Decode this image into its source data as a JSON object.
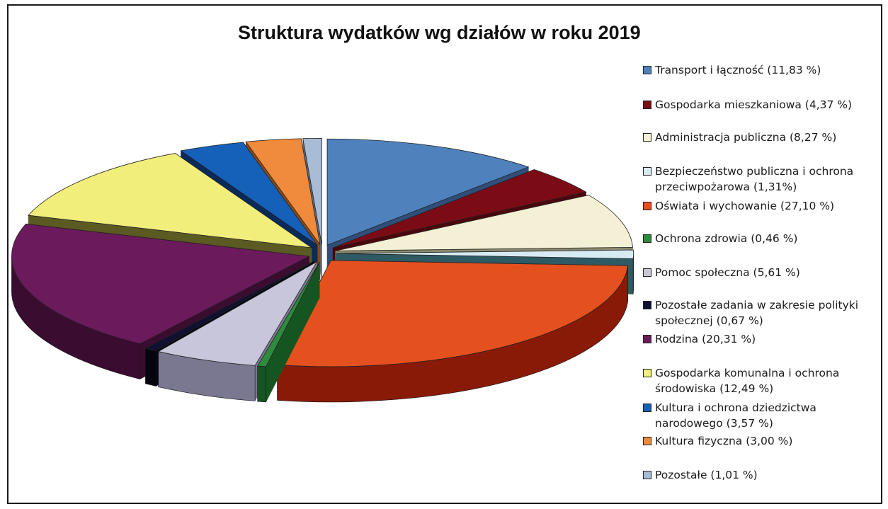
{
  "chart_data": {
    "type": "pie",
    "title": "Struktura wydatków wg działów w roku 2019",
    "legend_position": "right",
    "slices": [
      {
        "label": "Transport i łączność (11,83 %)",
        "value": 11.83,
        "color": "#4f81bd",
        "dark": "#2f4f7a",
        "lines": [
          "Transport i łączność (11,83 %)"
        ]
      },
      {
        "label": "Gospodarka mieszkaniowa (4,37 %)",
        "value": 4.37,
        "color": "#7b0c16",
        "dark": "#4a060c",
        "lines": [
          "Gospodarka mieszkaniowa (4,37 %)"
        ]
      },
      {
        "label": "Administracja publiczna (8,27 %)",
        "value": 8.27,
        "color": "#f3f0d5",
        "dark": "#8b8a6e",
        "lines": [
          "Administracja publiczna (8,27 %)"
        ]
      },
      {
        "label": "Bezpieczeństwo publiczna i ochrona przeciwpożarowa (1,31%)",
        "value": 1.31,
        "color": "#d7ebf3",
        "dark": "#2d5a63",
        "lines": [
          "Bezpieczeństwo publiczna i ochrona",
          "przeciwpożarowa (1,31%)"
        ]
      },
      {
        "label": "Oświata i wychowanie (27,10 %)",
        "value": 27.1,
        "color": "#e4501e",
        "dark": "#8a1a08",
        "lines": [
          "Oświata i wychowanie (27,10 %)"
        ]
      },
      {
        "label": "Ochrona zdrowia (0,46 %)",
        "value": 0.46,
        "color": "#2e8b3e",
        "dark": "#155522",
        "lines": [
          "Ochrona zdrowia (0,46 %)"
        ]
      },
      {
        "label": "Pomoc społeczna (5,61 %)",
        "value": 5.61,
        "color": "#c8c6da",
        "dark": "#7a7890",
        "lines": [
          "Pomoc społeczna (5,61 %)"
        ]
      },
      {
        "label": "Pozostałe zadania w zakresie polityki społecznej (0,67 %)",
        "value": 0.67,
        "color": "#101030",
        "dark": "#050510",
        "lines": [
          "Pozostałe zadania w zakresie polityki",
          "społecznej (0,67 %)"
        ]
      },
      {
        "label": "Rodzina (20,31 %)",
        "value": 20.31,
        "color": "#6b1a5c",
        "dark": "#3a0c30",
        "lines": [
          "Rodzina (20,31 %)"
        ]
      },
      {
        "label": "Gospodarka komunalna i ochrona środowiska (12,49 %)",
        "value": 12.49,
        "color": "#f2ee7c",
        "dark": "#5a5a22",
        "lines": [
          "Gospodarka komunalna i ochrona",
          "środowiska (12,49 %)"
        ]
      },
      {
        "label": "Kultura i ochrona dziedzictwa narodowego (3,57 %)",
        "value": 3.57,
        "color": "#1560b8",
        "dark": "#0a2a5a",
        "lines": [
          "Kultura i ochrona dziedzictwa",
          "narodowego (3,57 %)"
        ]
      },
      {
        "label": "Kultura fizyczna (3,00 %)",
        "value": 3.0,
        "color": "#f08a3c",
        "dark": "#8a4a14",
        "lines": [
          "Kultura fizyczna (3,00 %)"
        ]
      },
      {
        "label": "Pozostałe (1,01 %)",
        "value": 1.01,
        "color": "#a9bcd6",
        "dark": "#5a6a80",
        "lines": [
          "Pozostałe (1,01 %)"
        ]
      }
    ]
  }
}
